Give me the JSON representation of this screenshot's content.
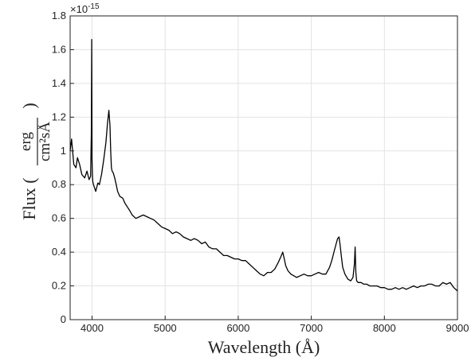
{
  "chart_data": {
    "type": "line",
    "title": "",
    "xlabel": "Wavelength (Å)",
    "ylabel_prefix": "Flux (",
    "ylabel_frac_num": "erg",
    "ylabel_frac_den": "cm²sÅ",
    "ylabel_suffix": ")",
    "y_multiplier_base": "×10",
    "y_multiplier_exp": "-15",
    "xlim": [
      3700,
      9000
    ],
    "ylim": [
      0,
      1.8
    ],
    "grid": true,
    "x_ticks": [
      4000,
      5000,
      6000,
      7000,
      8000,
      9000
    ],
    "x_tick_labels": [
      "4000",
      "5000",
      "6000",
      "7000",
      "8000",
      "9000"
    ],
    "y_ticks": [
      0,
      0.2,
      0.4,
      0.6,
      0.8,
      1,
      1.2,
      1.4,
      1.6,
      1.8
    ],
    "y_tick_labels": [
      "0",
      "0.2",
      "0.4",
      "0.6",
      "0.8",
      "1",
      "1.2",
      "1.4",
      "1.6",
      "1.8"
    ],
    "series": [
      {
        "color": "#000000",
        "x": [
          3700,
          3720,
          3750,
          3780,
          3800,
          3830,
          3860,
          3900,
          3930,
          3960,
          3980,
          3990,
          3995,
          4000,
          4005,
          4010,
          4020,
          4050,
          4080,
          4100,
          4130,
          4160,
          4190,
          4210,
          4230,
          4245,
          4255,
          4265,
          4275,
          4290,
          4310,
          4330,
          4350,
          4380,
          4420,
          4450,
          4480,
          4510,
          4550,
          4600,
          4650,
          4700,
          4750,
          4800,
          4850,
          4900,
          4950,
          5000,
          5050,
          5100,
          5150,
          5200,
          5250,
          5300,
          5350,
          5400,
          5450,
          5500,
          5550,
          5600,
          5650,
          5700,
          5750,
          5800,
          5850,
          5900,
          5950,
          6000,
          6050,
          6100,
          6150,
          6200,
          6250,
          6300,
          6350,
          6400,
          6450,
          6500,
          6550,
          6580,
          6610,
          6630,
          6650,
          6680,
          6720,
          6760,
          6800,
          6850,
          6900,
          6950,
          7000,
          7050,
          7100,
          7150,
          7200,
          7250,
          7280,
          7310,
          7340,
          7360,
          7380,
          7395,
          7410,
          7430,
          7460,
          7500,
          7540,
          7570,
          7590,
          7600,
          7610,
          7620,
          7640,
          7680,
          7720,
          7760,
          7800,
          7850,
          7900,
          7950,
          8000,
          8050,
          8100,
          8150,
          8200,
          8250,
          8300,
          8350,
          8400,
          8450,
          8500,
          8550,
          8600,
          8650,
          8700,
          8750,
          8800,
          8850,
          8900,
          8950,
          9000
        ],
        "y": [
          1.0,
          1.07,
          0.92,
          0.9,
          0.96,
          0.92,
          0.86,
          0.84,
          0.88,
          0.83,
          0.85,
          1.1,
          1.66,
          0.95,
          0.85,
          0.82,
          0.8,
          0.76,
          0.81,
          0.8,
          0.86,
          0.95,
          1.05,
          1.16,
          1.24,
          1.15,
          1.0,
          0.9,
          0.88,
          0.87,
          0.84,
          0.8,
          0.76,
          0.73,
          0.72,
          0.69,
          0.67,
          0.65,
          0.62,
          0.6,
          0.61,
          0.62,
          0.61,
          0.6,
          0.59,
          0.57,
          0.55,
          0.54,
          0.53,
          0.51,
          0.52,
          0.51,
          0.49,
          0.48,
          0.47,
          0.48,
          0.47,
          0.45,
          0.46,
          0.43,
          0.42,
          0.42,
          0.4,
          0.38,
          0.38,
          0.37,
          0.36,
          0.36,
          0.35,
          0.35,
          0.33,
          0.31,
          0.29,
          0.27,
          0.26,
          0.28,
          0.28,
          0.3,
          0.34,
          0.37,
          0.4,
          0.36,
          0.32,
          0.29,
          0.27,
          0.26,
          0.25,
          0.26,
          0.27,
          0.26,
          0.26,
          0.27,
          0.28,
          0.27,
          0.27,
          0.31,
          0.35,
          0.4,
          0.45,
          0.48,
          0.49,
          0.44,
          0.38,
          0.31,
          0.27,
          0.24,
          0.23,
          0.25,
          0.33,
          0.43,
          0.28,
          0.23,
          0.22,
          0.22,
          0.21,
          0.21,
          0.2,
          0.2,
          0.2,
          0.19,
          0.19,
          0.18,
          0.18,
          0.19,
          0.18,
          0.19,
          0.18,
          0.19,
          0.2,
          0.19,
          0.2,
          0.2,
          0.21,
          0.21,
          0.2,
          0.2,
          0.22,
          0.21,
          0.22,
          0.19,
          0.17
        ]
      }
    ]
  }
}
